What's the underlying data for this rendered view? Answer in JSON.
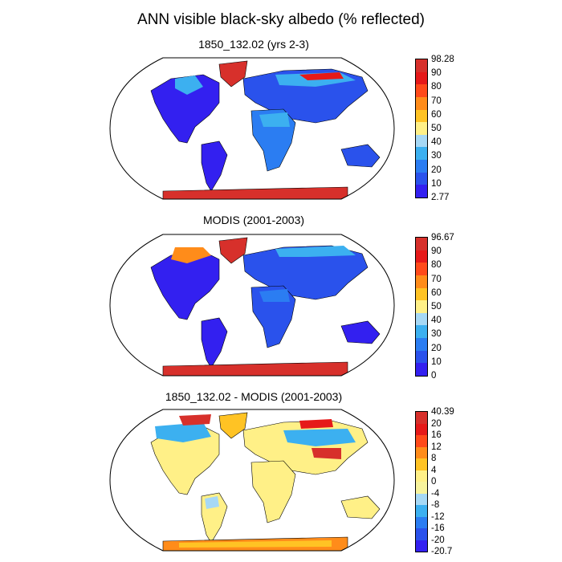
{
  "title": "ANN visible black-sky albedo (% reflected)",
  "panels": [
    {
      "title": "1850_132.02 (yrs 2-3)",
      "colorbar": {
        "labels": [
          "98.28",
          "90",
          "80",
          "70",
          "60",
          "50",
          "40",
          "30",
          "20",
          "10",
          "2.77"
        ],
        "colors": [
          "#d7302b",
          "#e61919",
          "#ff4a1a",
          "#ff8c1a",
          "#ffc324",
          "#fff087",
          "#a6d8f5",
          "#3cb0f0",
          "#2b7df2",
          "#2a52ec",
          "#3320f0"
        ]
      }
    },
    {
      "title": "MODIS (2001-2003)",
      "colorbar": {
        "labels": [
          "96.67",
          "90",
          "80",
          "70",
          "60",
          "50",
          "40",
          "30",
          "20",
          "10",
          "0"
        ],
        "colors": [
          "#d7302b",
          "#e61919",
          "#ff4a1a",
          "#ff8c1a",
          "#ffc324",
          "#fff087",
          "#a6d8f5",
          "#3cb0f0",
          "#2b7df2",
          "#2a52ec",
          "#3320f0"
        ]
      }
    },
    {
      "title": "1850_132.02 - MODIS (2001-2003)",
      "colorbar": {
        "labels": [
          "40.39",
          "20",
          "16",
          "12",
          "8",
          "4",
          "0",
          "-4",
          "-8",
          "-12",
          "-16",
          "-20",
          "-20.7"
        ],
        "colors": [
          "#d7302b",
          "#e61919",
          "#ff4a1a",
          "#ff8c1a",
          "#ffc324",
          "#fff087",
          "#f7f39c",
          "#a6d8f5",
          "#3cb0f0",
          "#2b7df2",
          "#2a52ec",
          "#3320f0"
        ]
      }
    }
  ]
}
